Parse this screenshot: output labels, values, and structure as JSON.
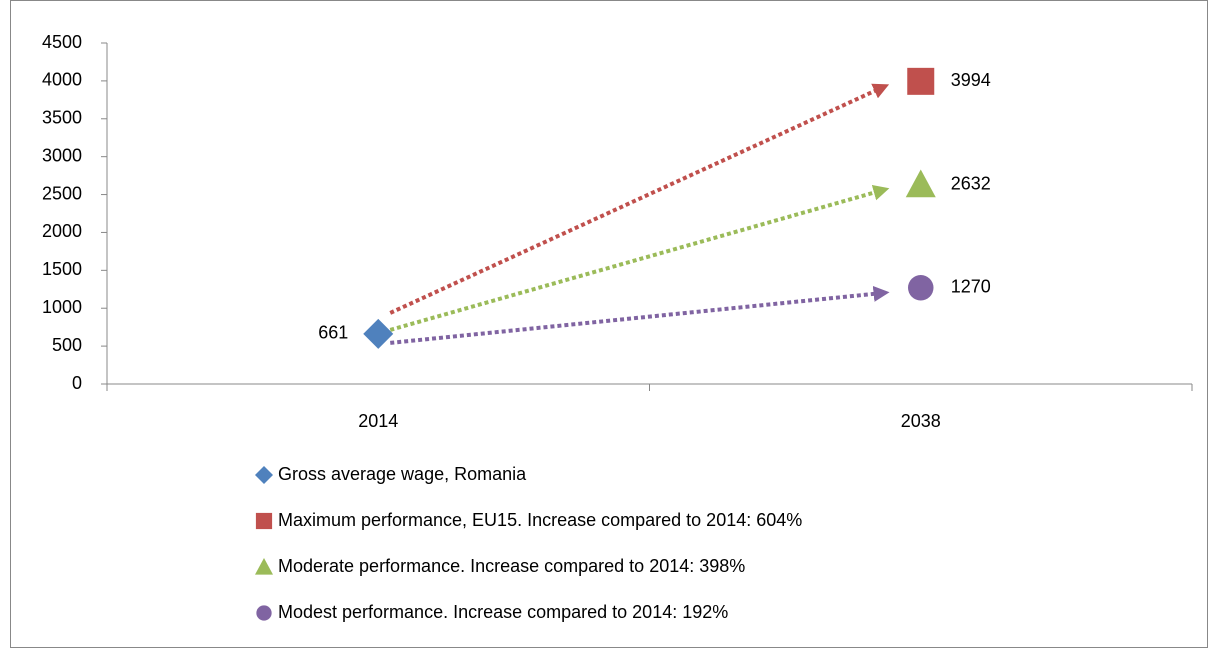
{
  "chart_data": {
    "type": "scatter",
    "categories": [
      "2014",
      "2038"
    ],
    "series": [
      {
        "name": "Gross average wage, Romania",
        "color": "#4f81bd",
        "marker": "diamond",
        "values": [
          661,
          null
        ]
      },
      {
        "name": "Maximum performance, EU15. Increase compared to 2014: 604%",
        "color": "#c0504d",
        "marker": "square",
        "values": [
          null,
          3994
        ]
      },
      {
        "name": "Moderate performance. Increase compared to 2014: 398%",
        "color": "#9bbb59",
        "marker": "triangle",
        "values": [
          null,
          2632
        ]
      },
      {
        "name": "Modest performance. Increase compared to 2014: 192%",
        "color": "#8064a2",
        "marker": "circle",
        "values": [
          null,
          1270
        ]
      }
    ],
    "ylim": [
      0,
      4500
    ],
    "yticks": [
      0,
      500,
      1000,
      1500,
      2000,
      2500,
      3000,
      3500,
      4000,
      4500
    ],
    "grid": false,
    "legend": "bottom"
  }
}
